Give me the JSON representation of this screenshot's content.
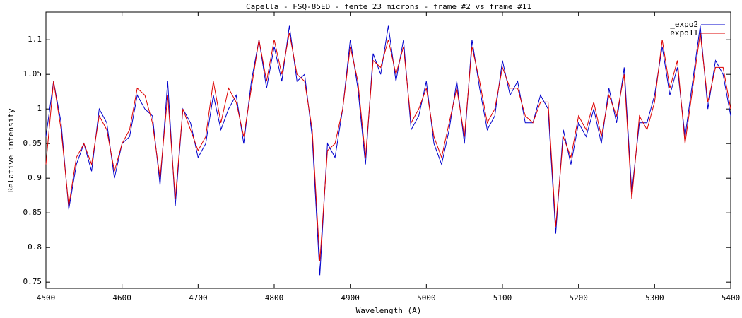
{
  "chart_data": {
    "type": "line",
    "title": "Capella - FSQ-85ED - fente 23 microns - frame #2  vs frame #11",
    "x_label": "Wavelength (A)",
    "y_label": "Relative intensity",
    "x": [
      4500,
      4510,
      4520,
      4530,
      4540,
      4550,
      4560,
      4570,
      4580,
      4590,
      4600,
      4610,
      4620,
      4630,
      4640,
      4650,
      4660,
      4670,
      4680,
      4690,
      4700,
      4710,
      4720,
      4730,
      4740,
      4750,
      4760,
      4770,
      4780,
      4790,
      4800,
      4810,
      4820,
      4830,
      4840,
      4850,
      4860,
      4870,
      4880,
      4890,
      4900,
      4910,
      4920,
      4930,
      4940,
      4950,
      4960,
      4970,
      4980,
      4990,
      5000,
      5010,
      5020,
      5030,
      5040,
      5050,
      5060,
      5070,
      5080,
      5090,
      5100,
      5110,
      5120,
      5130,
      5140,
      5150,
      5160,
      5170,
      5180,
      5190,
      5200,
      5210,
      5220,
      5230,
      5240,
      5250,
      5260,
      5270,
      5280,
      5290,
      5300,
      5310,
      5320,
      5330,
      5340,
      5350,
      5360,
      5370,
      5380,
      5390,
      5400
    ],
    "series": [
      {
        "name": "_expo2",
        "color": "#0000cc",
        "values": [
          0.96,
          1.04,
          0.98,
          0.855,
          0.92,
          0.95,
          0.91,
          1.0,
          0.98,
          0.9,
          0.95,
          0.96,
          1.02,
          1.0,
          0.99,
          0.89,
          1.04,
          0.86,
          1.0,
          0.98,
          0.93,
          0.95,
          1.02,
          0.97,
          1.0,
          1.02,
          0.95,
          1.04,
          1.1,
          1.03,
          1.09,
          1.04,
          1.12,
          1.04,
          1.05,
          0.96,
          0.76,
          0.95,
          0.93,
          1.0,
          1.1,
          1.03,
          0.92,
          1.08,
          1.05,
          1.12,
          1.04,
          1.1,
          0.97,
          0.99,
          1.04,
          0.95,
          0.92,
          0.97,
          1.04,
          0.95,
          1.1,
          1.03,
          0.97,
          0.99,
          1.07,
          1.02,
          1.04,
          0.98,
          0.98,
          1.02,
          1.0,
          0.82,
          0.97,
          0.92,
          0.98,
          0.96,
          1.0,
          0.95,
          1.03,
          0.98,
          1.06,
          0.88,
          0.98,
          0.98,
          1.02,
          1.09,
          1.02,
          1.06,
          0.96,
          1.04,
          1.12,
          1.0,
          1.07,
          1.05,
          0.99
        ]
      },
      {
        "name": "_expo11",
        "color": "#dd0000",
        "values": [
          0.92,
          1.04,
          0.97,
          0.86,
          0.93,
          0.95,
          0.92,
          0.99,
          0.97,
          0.91,
          0.95,
          0.97,
          1.03,
          1.02,
          0.98,
          0.9,
          1.02,
          0.87,
          1.0,
          0.97,
          0.94,
          0.96,
          1.04,
          0.98,
          1.03,
          1.01,
          0.96,
          1.03,
          1.1,
          1.04,
          1.1,
          1.05,
          1.11,
          1.05,
          1.04,
          0.97,
          0.78,
          0.94,
          0.95,
          1.0,
          1.09,
          1.04,
          0.93,
          1.07,
          1.06,
          1.1,
          1.05,
          1.09,
          0.98,
          1.0,
          1.03,
          0.96,
          0.93,
          0.98,
          1.03,
          0.96,
          1.09,
          1.04,
          0.98,
          1.0,
          1.06,
          1.03,
          1.03,
          0.99,
          0.98,
          1.01,
          1.01,
          0.83,
          0.96,
          0.93,
          0.99,
          0.97,
          1.01,
          0.96,
          1.02,
          0.99,
          1.05,
          0.87,
          0.99,
          0.97,
          1.01,
          1.1,
          1.03,
          1.07,
          0.95,
          1.03,
          1.11,
          1.01,
          1.06,
          1.06,
          1.0
        ]
      }
    ],
    "xlim": [
      4500,
      5400
    ],
    "xticks": [
      4500,
      4600,
      4700,
      4800,
      4900,
      5000,
      5100,
      5200,
      5300,
      5400
    ],
    "ylim": [
      0.741,
      1.14
    ],
    "yticks": [
      0.75,
      0.8,
      0.85,
      0.9,
      0.95,
      1,
      1.05,
      1.1
    ],
    "legend": "top-right"
  }
}
